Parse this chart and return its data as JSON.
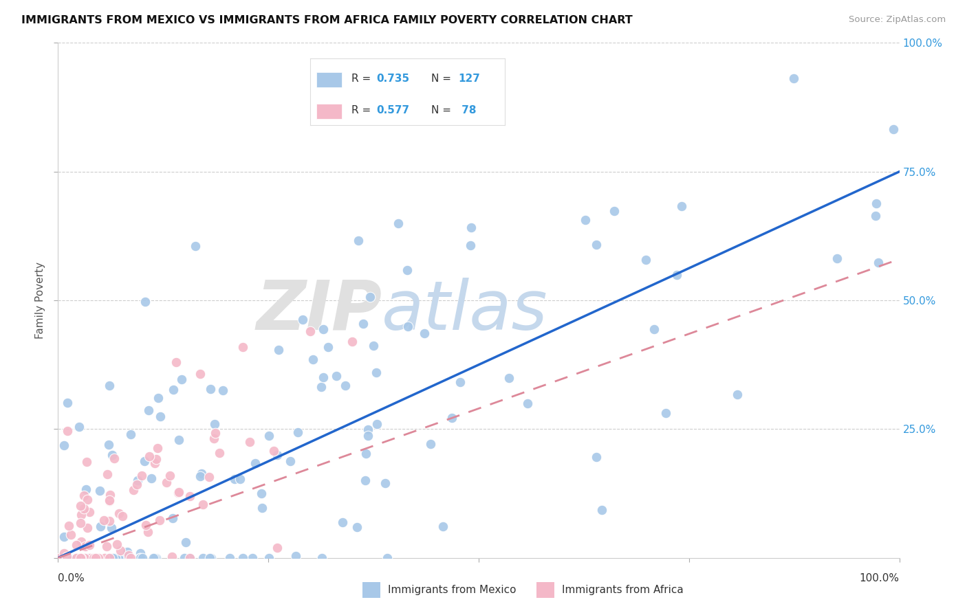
{
  "title": "IMMIGRANTS FROM MEXICO VS IMMIGRANTS FROM AFRICA FAMILY POVERTY CORRELATION CHART",
  "source": "Source: ZipAtlas.com",
  "ylabel": "Family Poverty",
  "mexico_color": "#A8C8E8",
  "africa_color": "#F4B8C8",
  "mexico_line_color": "#2266CC",
  "africa_line_color": "#DD8899",
  "background_color": "#FFFFFF",
  "grid_color": "#CCCCCC",
  "legend_mexico_R": "0.735",
  "legend_mexico_N": "127",
  "legend_africa_R": "0.577",
  "legend_africa_N": " 78",
  "ytick_color": "#3399DD",
  "label_color": "#333333"
}
